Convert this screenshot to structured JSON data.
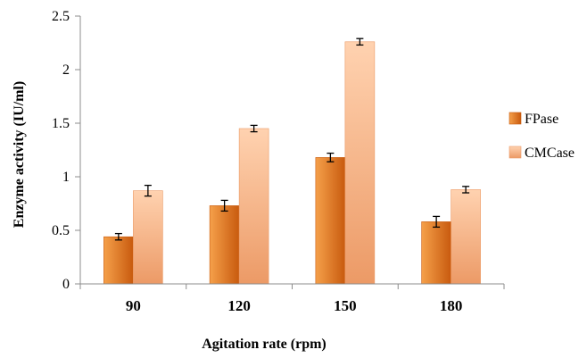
{
  "colors": {
    "fpase_light": "#f5a04a",
    "fpase_dark": "#c85a0e",
    "cmcase_light": "#ffd2b0",
    "cmcase_dark": "#ec9a66",
    "axis": "#8c8c8c",
    "errorbar": "#000000"
  },
  "chart_data": {
    "type": "bar",
    "xlabel": "Agitation rate (rpm)",
    "ylabel": "Enzyme activity (IU/ml)",
    "categories": [
      "90",
      "120",
      "150",
      "180"
    ],
    "series": [
      {
        "name": "FPase",
        "values": [
          0.44,
          0.73,
          1.18,
          0.58
        ],
        "errors": [
          0.03,
          0.05,
          0.04,
          0.05
        ]
      },
      {
        "name": "CMCase",
        "values": [
          0.87,
          1.45,
          2.26,
          0.88
        ],
        "errors": [
          0.05,
          0.03,
          0.03,
          0.03
        ]
      }
    ],
    "ylim": [
      0,
      2.5
    ],
    "yticks": [
      0,
      0.5,
      1,
      1.5,
      2,
      2.5
    ],
    "ytick_labels": [
      "0",
      "0.5",
      "1",
      "1.5",
      "2",
      "2.5"
    ],
    "grid": false,
    "legend_position": "right"
  }
}
